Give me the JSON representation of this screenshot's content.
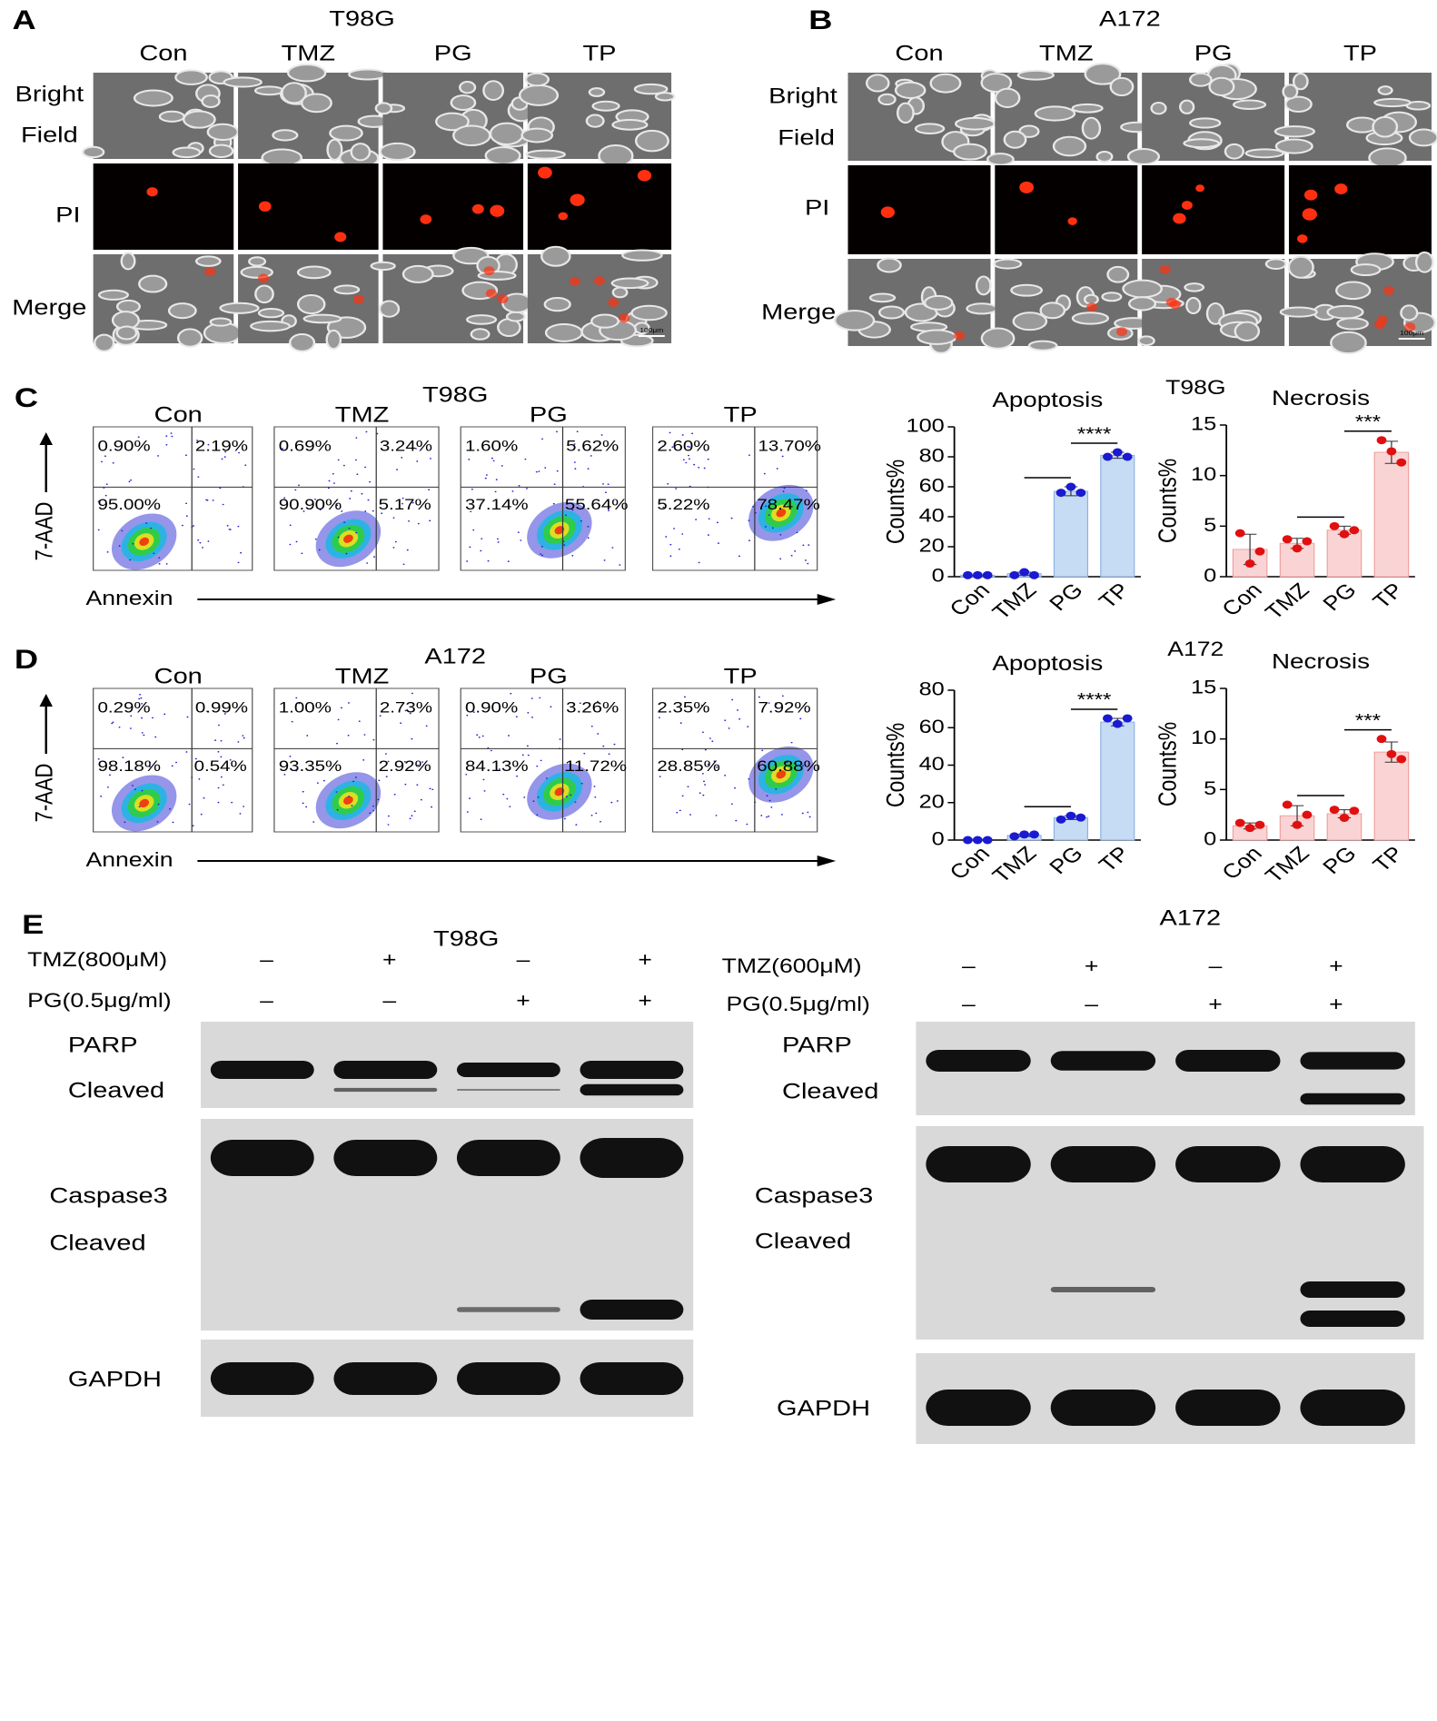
{
  "panel_a": {
    "letter": "A",
    "cell_line": "T98G",
    "groups": [
      "Con",
      "TMZ",
      "PG",
      "TP"
    ],
    "rows": [
      [
        "Bright",
        "Field"
      ],
      [
        "PI"
      ],
      [
        "Merge"
      ]
    ],
    "scale_bar": "100μm"
  },
  "panel_b": {
    "letter": "B",
    "cell_line": "A172",
    "groups": [
      "Con",
      "TMZ",
      "PG",
      "TP"
    ],
    "rows": [
      [
        "Bright",
        "Field"
      ],
      [
        "PI"
      ],
      [
        "Merge"
      ]
    ],
    "scale_bar": "100μm"
  },
  "panel_c": {
    "letter": "C",
    "cell_line": "T98G",
    "groups": [
      "Con",
      "TMZ",
      "PG",
      "TP"
    ],
    "y_axis": "7-AAD",
    "x_axis": "Annexin",
    "charts_label": "T98G",
    "quadrants": [
      [
        "0.90%",
        "2.19%",
        "95.00%",
        null
      ],
      [
        "0.69%",
        "3.24%",
        "90.90%",
        "5.17%"
      ],
      [
        "1.60%",
        "5.62%",
        "37.14%",
        "55.64%"
      ],
      [
        "2.60%",
        "13.70%",
        "5.22%",
        "78.47%"
      ]
    ]
  },
  "panel_d": {
    "letter": "D",
    "cell_line": "A172",
    "groups": [
      "Con",
      "TMZ",
      "PG",
      "TP"
    ],
    "y_axis": "7-AAD",
    "x_axis": "Annexin",
    "charts_label": "A172",
    "quadrants": [
      [
        "0.29%",
        "0.99%",
        "98.18%",
        "0.54%"
      ],
      [
        "1.00%",
        "2.73%",
        "93.35%",
        "2.92%"
      ],
      [
        "0.90%",
        "3.26%",
        "84.13%",
        "11.72%"
      ],
      [
        "2.35%",
        "7.92%",
        "28.85%",
        "60.88%"
      ]
    ]
  },
  "chart_data": [
    {
      "type": "bar",
      "title": "Apoptosis",
      "ylabel": "Counts%",
      "categories": [
        "Con",
        "TMZ",
        "PG",
        "TP"
      ],
      "values": [
        1,
        2,
        57,
        81
      ],
      "errors": [
        0,
        1,
        3,
        2
      ],
      "points": [
        [
          1,
          1,
          1
        ],
        [
          1,
          3,
          1
        ],
        [
          56,
          60,
          56
        ],
        [
          80,
          83,
          80
        ]
      ],
      "color": "#c6dbf4",
      "edge_color": "#8db3e2",
      "point_color": "#1a1ad0",
      "ylim": [
        0,
        100
      ],
      "yticks": [
        0,
        20,
        40,
        60,
        80,
        100
      ],
      "comparisons": [
        {
          "groups": [
            "TMZ",
            "PG"
          ]
        },
        {
          "groups": [
            "PG",
            "TP"
          ],
          "label": "****"
        }
      ]
    },
    {
      "type": "bar",
      "title": "Necrosis",
      "ylabel": "Counts%",
      "categories": [
        "Con",
        "TMZ",
        "PG",
        "TP"
      ],
      "values": [
        2.7,
        3.3,
        4.6,
        12.3
      ],
      "errors": [
        1.5,
        0.5,
        0.4,
        1.1
      ],
      "points": [
        [
          4.3,
          1.3,
          2.5
        ],
        [
          3.7,
          2.8,
          3.5
        ],
        [
          5.0,
          4.2,
          4.6
        ],
        [
          13.5,
          12.4,
          11.3
        ]
      ],
      "color": "#fad4d4",
      "edge_color": "#f0a0a0",
      "point_color": "#e01010",
      "ylim": [
        0,
        15
      ],
      "yticks": [
        0,
        5,
        10,
        15
      ],
      "comparisons": [
        {
          "groups": [
            "TMZ",
            "PG"
          ]
        },
        {
          "groups": [
            "PG",
            "TP"
          ],
          "label": "***"
        }
      ]
    },
    {
      "type": "bar",
      "title": "Apoptosis",
      "ylabel": "Counts%",
      "categories": [
        "Con",
        "TMZ",
        "PG",
        "TP"
      ],
      "values": [
        0,
        2.5,
        12,
        63
      ],
      "errors": [
        0,
        0.6,
        1,
        2
      ],
      "points": [
        [
          0,
          0,
          0
        ],
        [
          2,
          3,
          3
        ],
        [
          11,
          13,
          12
        ],
        [
          65,
          62,
          65
        ]
      ],
      "color": "#c6dbf4",
      "edge_color": "#8db3e2",
      "point_color": "#1a1ad0",
      "ylim": [
        0,
        80
      ],
      "yticks": [
        0,
        20,
        40,
        60,
        80
      ],
      "comparisons": [
        {
          "groups": [
            "TMZ",
            "PG"
          ]
        },
        {
          "groups": [
            "PG",
            "TP"
          ],
          "label": "****"
        }
      ]
    },
    {
      "type": "bar",
      "title": "Necrosis",
      "ylabel": "Counts%",
      "categories": [
        "Con",
        "TMZ",
        "PG",
        "TP"
      ],
      "values": [
        1.4,
        2.4,
        2.6,
        8.7
      ],
      "errors": [
        0.3,
        1,
        0.4,
        1
      ],
      "points": [
        [
          1.7,
          1.2,
          1.5
        ],
        [
          3.5,
          1.5,
          2.5
        ],
        [
          3.0,
          2.2,
          2.9
        ],
        [
          10.0,
          8.5,
          8.0
        ]
      ],
      "color": "#fad4d4",
      "edge_color": "#f0a0a0",
      "point_color": "#e01010",
      "ylim": [
        0,
        15
      ],
      "yticks": [
        0,
        5,
        10,
        15
      ],
      "comparisons": [
        {
          "groups": [
            "TMZ",
            "PG"
          ]
        },
        {
          "groups": [
            "PG",
            "TP"
          ],
          "label": "***"
        }
      ]
    }
  ],
  "panel_e": {
    "letter": "E",
    "blots": [
      {
        "cell_line": "T98G",
        "treatments": [
          {
            "label": "TMZ(800μM)",
            "signs": [
              "–",
              "+",
              "–",
              "+"
            ]
          },
          {
            "label": "PG(0.5μg/ml)",
            "signs": [
              "–",
              "–",
              "+",
              "+"
            ]
          }
        ],
        "proteins": [
          "PARP",
          "Cleaved",
          "Caspase3",
          "Cleaved",
          "GAPDH"
        ]
      },
      {
        "cell_line": "A172",
        "treatments": [
          {
            "label": "TMZ(600μM)",
            "signs": [
              "–",
              "+",
              "–",
              "+"
            ]
          },
          {
            "label": "PG(0.5μg/ml)",
            "signs": [
              "–",
              "–",
              "+",
              "+"
            ]
          }
        ],
        "proteins": [
          "PARP",
          "Cleaved",
          "Caspase3",
          "Cleaved",
          "GAPDH"
        ]
      }
    ]
  }
}
